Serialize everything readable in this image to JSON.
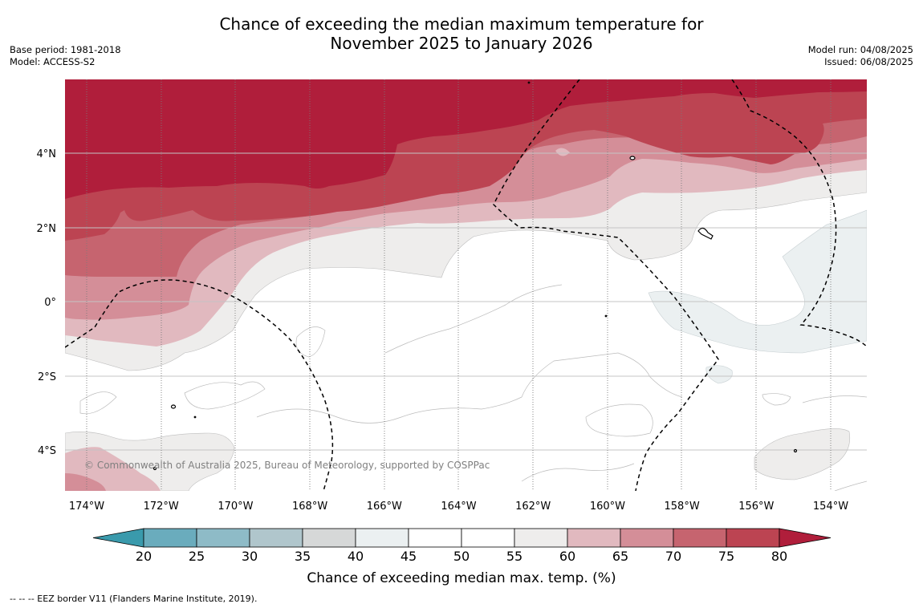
{
  "title": {
    "line1": "Chance of exceeding the median maximum temperature for",
    "line2": "November 2025 to January 2026"
  },
  "meta_left": {
    "base_period": "Base period: 1981-2018",
    "model": "Model: ACCESS-S2"
  },
  "meta_right": {
    "model_run": "Model run: 04/08/2025",
    "issued": "Issued: 06/08/2025"
  },
  "map": {
    "lat_labels": [
      "4°N",
      "2°N",
      "0°",
      "2°S",
      "4°S"
    ],
    "lon_labels": [
      "174°W",
      "172°W",
      "170°W",
      "168°W",
      "166°W",
      "164°W",
      "162°W",
      "160°W",
      "158°W",
      "156°W",
      "154°W"
    ],
    "copyright": "© Commonwealth of Australia 2025, Bureau of Meteorology, supported by COSPPac"
  },
  "colorbar": {
    "label": "Chance of exceeding median max. temp. (%)",
    "ticks": [
      "20",
      "25",
      "30",
      "35",
      "40",
      "45",
      "50",
      "55",
      "60",
      "65",
      "70",
      "75",
      "80"
    ],
    "colors": {
      "below_20": "#3a9aac",
      "c20_25": "#6aacbd",
      "c25_30": "#8ebbc7",
      "c30_35": "#b0c6cc",
      "c35_40": "#d6d8d8",
      "c40_45": "#ebf0f1",
      "c45_55": "#ffffff",
      "c55_60": "#eeedec",
      "c60_65": "#e1b9bf",
      "c65_70": "#d48e98",
      "c70_75": "#c6646f",
      "c75_80": "#bc4452",
      "above_80": "#b01e3b"
    }
  },
  "footnote": "--  --  -- EEZ border V11 (Flanders Marine Institute, 2019)."
}
